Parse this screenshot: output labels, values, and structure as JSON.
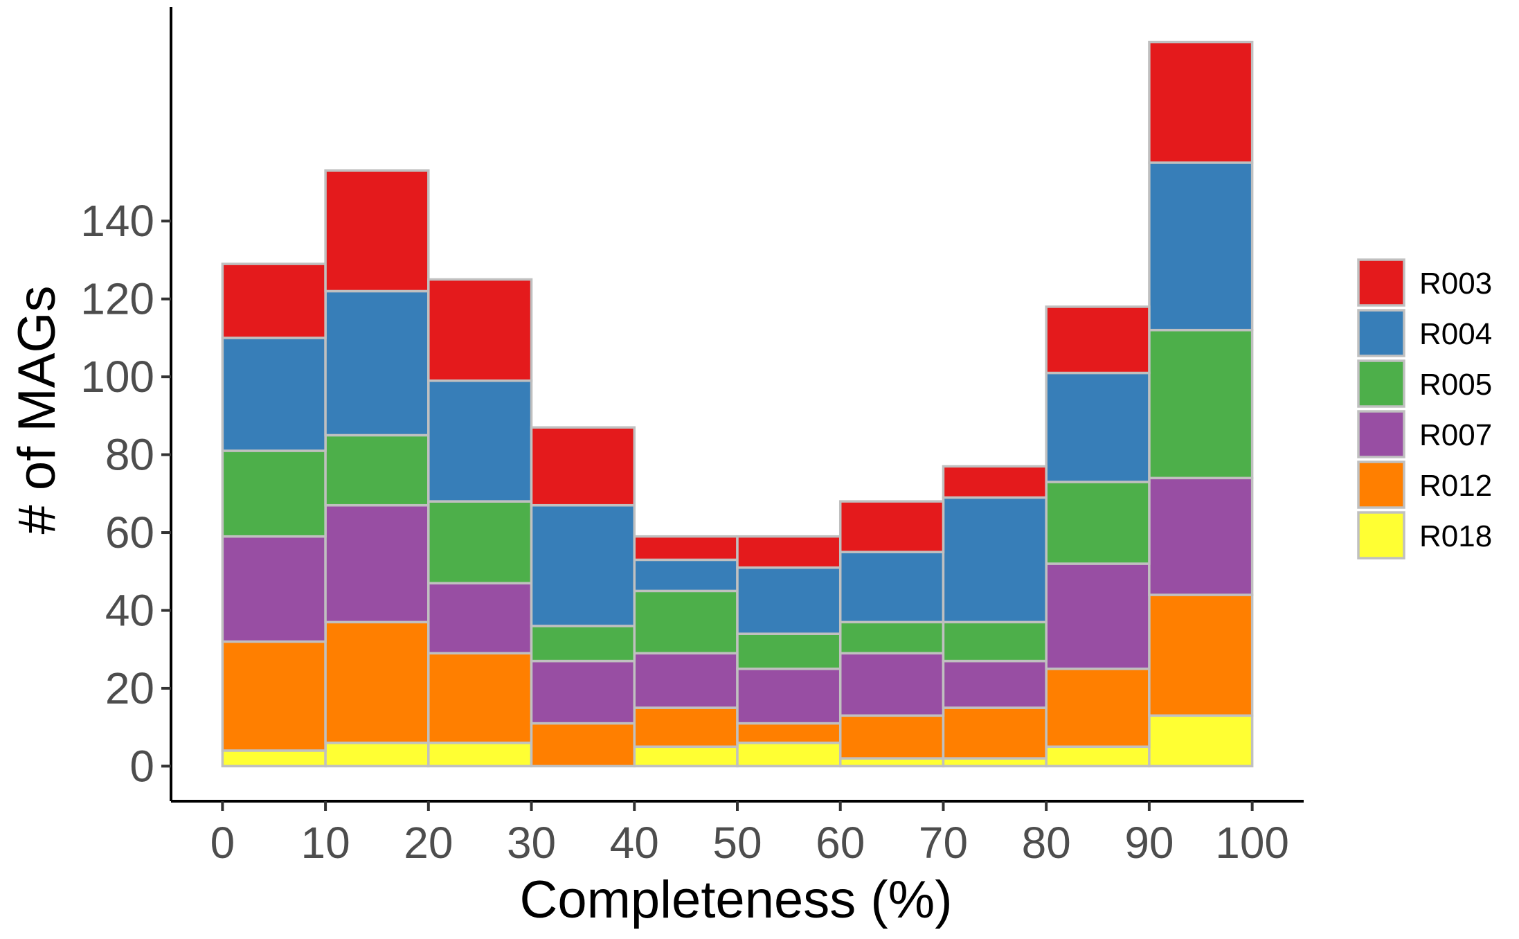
{
  "chart_data": {
    "type": "bar",
    "stacked": true,
    "histogram": true,
    "xlabel": "Completeness (%)",
    "ylabel": "# of MAGs",
    "bin_edges": [
      0,
      10,
      20,
      30,
      40,
      50,
      60,
      70,
      80,
      90,
      100
    ],
    "xticks": [
      0,
      10,
      20,
      30,
      40,
      50,
      60,
      70,
      80,
      90,
      100
    ],
    "xtick_labels": [
      "0",
      "10",
      "20",
      "30",
      "40",
      "50",
      "60",
      "70",
      "80",
      "90",
      "100"
    ],
    "yticks": [
      0,
      20,
      40,
      60,
      80,
      100,
      120,
      140
    ],
    "ytick_labels": [
      "0",
      "20",
      "40",
      "60",
      "80",
      "100",
      "120",
      "140"
    ],
    "xlim": [
      -5,
      105
    ],
    "ylim": [
      -9,
      195
    ],
    "grid": false,
    "legend_position": "right",
    "bar_outline_color": "#c0c0c0",
    "series": [
      {
        "name": "R018",
        "color": "#ffff33",
        "values": [
          4,
          6,
          6,
          0,
          5,
          6,
          2,
          2,
          5,
          13
        ]
      },
      {
        "name": "R012",
        "color": "#ff7f00",
        "values": [
          28,
          31,
          23,
          11,
          10,
          5,
          11,
          13,
          20,
          31
        ]
      },
      {
        "name": "R007",
        "color": "#984ea3",
        "values": [
          27,
          30,
          18,
          16,
          14,
          14,
          16,
          12,
          27,
          30
        ]
      },
      {
        "name": "R005",
        "color": "#4daf4a",
        "values": [
          22,
          18,
          21,
          9,
          16,
          9,
          8,
          10,
          21,
          38
        ]
      },
      {
        "name": "R004",
        "color": "#377eb8",
        "values": [
          29,
          37,
          31,
          31,
          8,
          17,
          18,
          32,
          28,
          43
        ]
      },
      {
        "name": "R003",
        "color": "#e41a1c",
        "values": [
          19,
          31,
          26,
          20,
          6,
          8,
          13,
          8,
          17,
          31
        ]
      }
    ],
    "legend_order": [
      "R003",
      "R004",
      "R005",
      "R007",
      "R012",
      "R018"
    ]
  }
}
